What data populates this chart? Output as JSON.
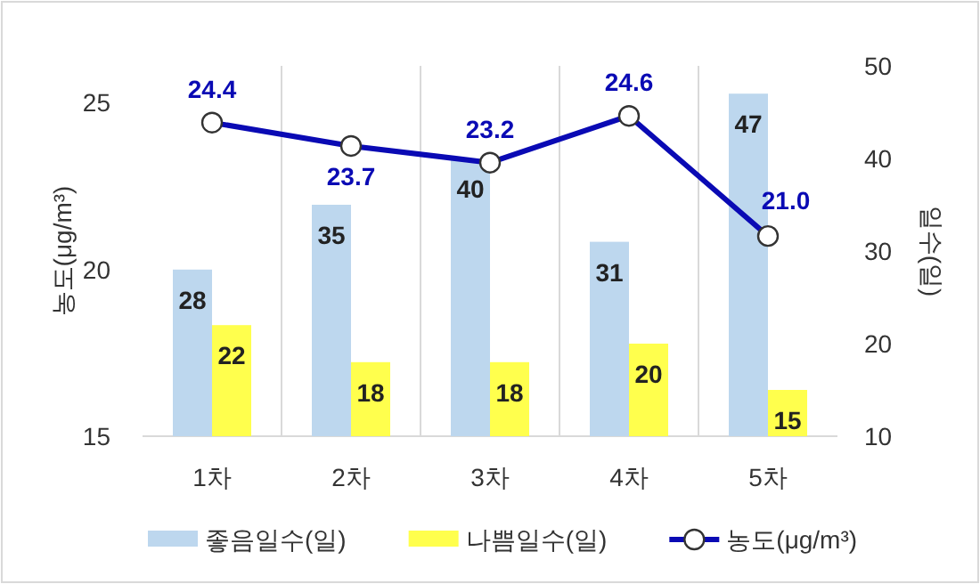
{
  "chart_data": {
    "type": "bar",
    "categories": [
      "1차",
      "2차",
      "3차",
      "4차",
      "5차"
    ],
    "ylabel": "농도(μg/m³)",
    "y2label": "일수(일)",
    "ylim": [
      15,
      26.1
    ],
    "yticks": [
      15,
      20,
      25
    ],
    "y2lim": [
      10,
      50
    ],
    "y2ticks": [
      10,
      20,
      30,
      40,
      50
    ],
    "series": [
      {
        "name": "좋음일수(일)",
        "axis": "y2",
        "color": "#bdd7ee",
        "values": [
          28,
          35,
          40,
          31,
          47
        ]
      },
      {
        "name": "나쁨일수(일)",
        "axis": "y2",
        "color": "#ffff4d",
        "values": [
          22,
          18,
          18,
          20,
          15
        ]
      },
      {
        "name": "농도(μg/m³)",
        "type": "line",
        "axis": "y",
        "color": "#0a0ab4",
        "values": [
          24.4,
          23.7,
          23.2,
          24.6,
          21.0
        ],
        "value_labels": [
          "24.4",
          "23.7",
          "23.2",
          "24.6",
          "21.0"
        ]
      }
    ],
    "data_labels": true,
    "grid": "x",
    "legend": "bottom",
    "marker": "circle",
    "line_style": "solid"
  }
}
